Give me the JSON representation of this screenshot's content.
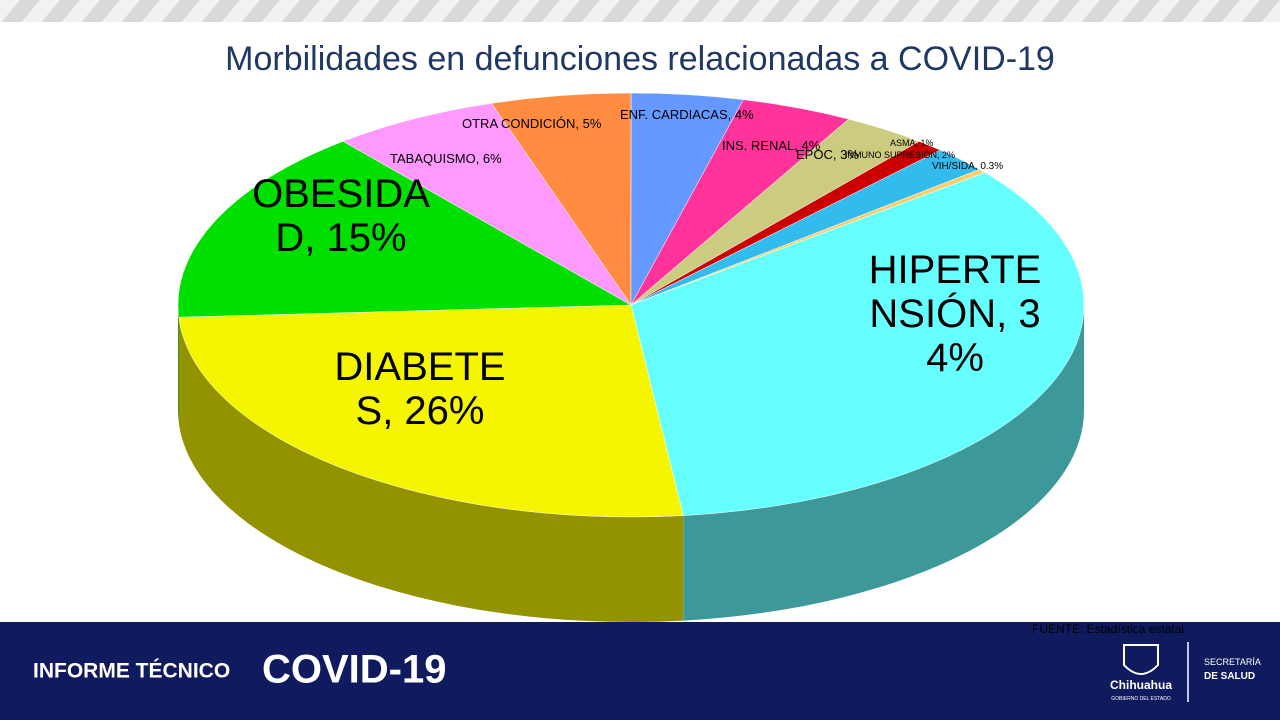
{
  "chart_data": {
    "type": "pie3d",
    "title": "Morbilidades en defunciones relacionadas a COVID-19",
    "values": [
      34,
      26,
      15,
      6,
      5,
      4,
      4,
      3,
      1,
      2,
      0.3
    ],
    "value_labels": [
      "HIPERTENSIÓN, 34%",
      "DIABETES, 26%",
      "OBESIDAD, 15%",
      "TABAQUISMO, 6%",
      "OTRA CONDICIÓN, 5%",
      "ENF. CARDIACAS, 4%",
      "INS. RENAL, 4%",
      "EPOC, 3%",
      "ASMA, 1%",
      "INMUNO SUPRESIÓN, 2%",
      "VIH/SIDA, 0.3%"
    ],
    "colors": [
      "#66ffff",
      "#f5f500",
      "#00e000",
      "#ff99ff",
      "#ff8c40",
      "#6699ff",
      "#ff3399",
      "#cccc80",
      "#cc0000",
      "#33bbee",
      "#ffcc66"
    ],
    "source": "FUENTE: Estadística estatal"
  },
  "footer": {
    "report": "INFORME TÉCNICO",
    "topic": "COVID-19",
    "state": "Chihuahua",
    "government": "GOBIERNO DEL ESTADO",
    "ministry_line1": "SECRETARÍA",
    "ministry_line2": "DE SALUD"
  }
}
